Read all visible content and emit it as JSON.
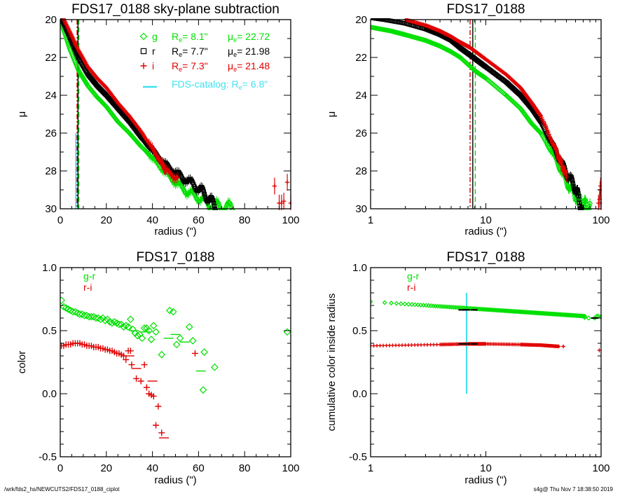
{
  "footer": {
    "left": "/wrk/fds2_hs/NEWCUTS2/FDS17_0188_ciplot",
    "right": "s4g@  Thu Nov  7 18:38:50 2019"
  },
  "colors": {
    "g": "#00e000",
    "r": "#000000",
    "i": "#e00000",
    "catalog": "#40e0f0"
  },
  "chart_data": [
    {
      "id": "profile-linear",
      "type": "scatter",
      "title": "FDS17_0188 sky-plane subtraction",
      "xlabel": "radius (\")",
      "ylabel": "μ",
      "xscale": "linear",
      "xlim": [
        0,
        100
      ],
      "ylim": [
        30,
        20
      ],
      "xticks": [
        "0",
        "20",
        "40",
        "60",
        "80",
        "100"
      ],
      "xtick_values": [
        0,
        20,
        40,
        60,
        80,
        100
      ],
      "yticks": [
        "20",
        "22",
        "24",
        "26",
        "28",
        "30"
      ],
      "ytick_values": [
        20,
        22,
        24,
        26,
        28,
        30
      ],
      "legend": [
        {
          "band": "g",
          "symbol": "◇",
          "re_label": "R",
          "re_sub": "e",
          "re_value": "=   8.1\"",
          "mu_label": "μ",
          "mu_sub": "e",
          "mu_value": "= 22.72"
        },
        {
          "band": "r",
          "symbol": "□",
          "re_label": "R",
          "re_sub": "e",
          "re_value": "=   7.7\"",
          "mu_label": "μ",
          "mu_sub": "e",
          "mu_value": "= 21.98"
        },
        {
          "band": "i",
          "symbol": "+",
          "re_label": "R",
          "re_sub": "e",
          "re_value": "=   7.3\"",
          "mu_label": "μ",
          "mu_sub": "e",
          "mu_value": "= 21.48"
        }
      ],
      "catalog_legend": {
        "text": "FDS-catalog: R",
        "sub": "e",
        "value": "=   6.8\""
      },
      "vlines": [
        {
          "band": "catalog",
          "x": 6.8,
          "style": "solid",
          "ymin": 26,
          "ymax": 30
        },
        {
          "band": "i",
          "x": 7.3,
          "style": "dashdot"
        },
        {
          "band": "r",
          "x": 7.7,
          "style": "solid"
        },
        {
          "band": "g",
          "x": 8.1,
          "style": "dashed"
        }
      ],
      "series": [
        {
          "name": "g",
          "marker": "diamond",
          "x": [
            0,
            4,
            8,
            12,
            16,
            20,
            25,
            30,
            35,
            40,
            45,
            50,
            55,
            60,
            65,
            70,
            75
          ],
          "y": [
            20.0,
            21.5,
            22.7,
            23.5,
            24.1,
            24.6,
            25.4,
            26.0,
            26.7,
            27.3,
            28.0,
            28.6,
            29.1,
            29.4,
            29.8,
            29.9,
            30.0
          ]
        },
        {
          "name": "r",
          "marker": "square",
          "x": [
            0,
            4,
            7.7,
            12,
            16,
            20,
            25,
            30,
            35,
            40,
            45,
            50,
            55,
            60,
            64,
            68
          ],
          "y": [
            19.8,
            20.9,
            21.98,
            22.9,
            23.5,
            24.0,
            24.7,
            25.4,
            26.2,
            26.9,
            27.6,
            28.1,
            28.5,
            28.9,
            29.4,
            30.0
          ]
        },
        {
          "name": "i",
          "marker": "plus",
          "x": [
            0,
            4,
            7.3,
            12,
            16,
            20,
            25,
            30,
            35,
            40,
            44,
            46,
            51
          ],
          "y": [
            19.6,
            20.6,
            21.48,
            22.5,
            23.1,
            23.6,
            24.4,
            25.1,
            25.9,
            26.8,
            27.6,
            28.0,
            28.4
          ]
        },
        {
          "name": "i-outer",
          "band": "i",
          "marker": "plus-err",
          "x": [
            93,
            95,
            96,
            97,
            98.5,
            100
          ],
          "y": [
            28.8,
            29.7,
            29.7,
            29.6,
            28.6,
            29.7
          ]
        }
      ]
    },
    {
      "id": "profile-log",
      "type": "scatter",
      "title": "FDS17_0188",
      "xlabel": "radius (\")",
      "ylabel": "μ",
      "xscale": "log",
      "xlim": [
        1,
        100
      ],
      "ylim": [
        30,
        20
      ],
      "xticks": [
        "1",
        "10",
        "100"
      ],
      "xtick_values": [
        1,
        10,
        100
      ],
      "yticks": [
        "20",
        "22",
        "24",
        "26",
        "28",
        "30"
      ],
      "ytick_values": [
        20,
        22,
        24,
        26,
        28,
        30
      ],
      "vlines": [
        {
          "band": "i",
          "x": 7.3,
          "style": "dashdot"
        },
        {
          "band": "r",
          "x": 7.7,
          "style": "solid"
        },
        {
          "band": "g",
          "x": 8.1,
          "style": "dashed"
        }
      ],
      "series": [
        {
          "name": "g",
          "marker": "diamond",
          "x": [
            1,
            1.5,
            2,
            3,
            4,
            5,
            6,
            8.1,
            10,
            15,
            20,
            25,
            30,
            40,
            50,
            60,
            70,
            80
          ],
          "y": [
            20.4,
            20.6,
            20.8,
            21.1,
            21.4,
            21.7,
            22.0,
            22.72,
            23.1,
            24.0,
            24.7,
            25.5,
            26.0,
            27.3,
            28.6,
            29.3,
            29.8,
            30.0
          ]
        },
        {
          "name": "r",
          "marker": "square",
          "x": [
            1,
            1.3,
            2,
            3,
            4,
            5,
            6,
            7.7,
            10,
            15,
            20,
            25,
            30,
            40,
            50,
            60,
            68
          ],
          "y": [
            19.9,
            20.0,
            20.2,
            20.5,
            20.8,
            21.1,
            21.5,
            21.98,
            22.5,
            23.3,
            24.0,
            24.7,
            25.4,
            26.9,
            28.1,
            28.9,
            30.0
          ]
        },
        {
          "name": "i",
          "marker": "plus",
          "x": [
            2,
            3,
            4,
            5,
            6,
            7.3,
            10,
            15,
            20,
            25,
            30,
            40,
            45,
            50
          ],
          "y": [
            20.0,
            20.3,
            20.6,
            20.9,
            21.2,
            21.48,
            22.1,
            22.9,
            23.6,
            24.4,
            25.1,
            26.8,
            27.6,
            28.3
          ]
        },
        {
          "name": "i-outer",
          "band": "i",
          "marker": "plus-err",
          "x": [
            95,
            97,
            98,
            99,
            100
          ],
          "y": [
            29.7,
            29.5,
            29.0,
            28.8,
            29.7
          ]
        }
      ]
    },
    {
      "id": "color-profile",
      "type": "scatter",
      "title": "FDS17_0188",
      "xlabel": "radius (\")",
      "ylabel": "color",
      "xscale": "linear",
      "xlim": [
        0,
        100
      ],
      "ylim": [
        -0.5,
        1.0
      ],
      "xticks": [
        "0",
        "20",
        "40",
        "60",
        "80",
        "100"
      ],
      "xtick_values": [
        0,
        20,
        40,
        60,
        80,
        100
      ],
      "yticks": [
        "1.0",
        "0.5",
        "0.0",
        "-0.5"
      ],
      "ytick_values": [
        1.0,
        0.5,
        0.0,
        -0.5
      ],
      "legend": [
        {
          "band": "g",
          "label": "g-r"
        },
        {
          "band": "i",
          "label": "r-i"
        }
      ],
      "series": [
        {
          "name": "g-r",
          "band": "g",
          "marker": "diamond",
          "x": [
            0.5,
            1.5,
            2.5,
            3.5,
            4.5,
            5.5,
            6.5,
            7.5,
            8.5,
            9.5,
            10.5,
            11.5,
            12.5,
            13.5,
            14.5,
            15.5,
            16.5,
            17.5,
            18.5,
            19.5,
            20.5,
            21.5,
            22.5,
            23.5,
            24.5,
            25.5,
            26.5,
            27.5,
            28.5,
            29.5,
            30.5,
            31.5,
            32.5,
            33.5,
            34.5,
            35.5,
            36.5,
            37.5,
            38.5,
            39.5,
            40.5,
            41.5,
            44,
            47.5,
            49,
            50.5,
            52,
            56,
            57.5,
            62,
            62.5,
            67
          ],
          "y": [
            0.74,
            0.69,
            0.68,
            0.67,
            0.66,
            0.65,
            0.65,
            0.64,
            0.63,
            0.63,
            0.62,
            0.62,
            0.61,
            0.61,
            0.61,
            0.6,
            0.6,
            0.59,
            0.6,
            0.58,
            0.59,
            0.57,
            0.56,
            0.57,
            0.56,
            0.55,
            0.55,
            0.53,
            0.54,
            0.53,
            0.59,
            0.51,
            0.48,
            0.46,
            0.47,
            0.44,
            0.52,
            0.52,
            0.5,
            0.43,
            0.54,
            0.49,
            0.31,
            0.66,
            0.65,
            0.39,
            0.44,
            0.53,
            0.42,
            0.03,
            0.33,
            0.21
          ]
        },
        {
          "name": "g-r-outer",
          "band": "g",
          "marker": "diamond",
          "x": [
            98.5
          ],
          "y": [
            0.49
          ]
        },
        {
          "name": "g-r-bins",
          "band": "g",
          "marker": "hbar",
          "x": [
            32,
            37,
            47,
            50,
            54,
            61
          ],
          "y": [
            0.5,
            0.49,
            0.44,
            0.47,
            0.41,
            0.18
          ]
        },
        {
          "name": "r-i",
          "band": "i",
          "marker": "plus",
          "x": [
            0.5,
            1.5,
            2.5,
            3.5,
            4.5,
            5.5,
            6.5,
            7.5,
            8.5,
            9.5,
            10.5,
            11.5,
            12.5,
            13.5,
            14.5,
            15.5,
            16.5,
            17.5,
            18.5,
            19.5,
            20.5,
            21.5,
            22.5,
            23.5,
            24.5,
            25.5,
            26.5,
            27.5,
            28.5,
            29.5,
            30.5,
            31,
            33,
            35,
            36.5,
            37.5,
            38.5,
            39.5,
            40.5,
            41.5,
            42.5,
            44,
            58.5
          ],
          "y": [
            0.38,
            0.38,
            0.39,
            0.39,
            0.39,
            0.4,
            0.4,
            0.4,
            0.4,
            0.39,
            0.39,
            0.38,
            0.38,
            0.38,
            0.37,
            0.37,
            0.37,
            0.36,
            0.36,
            0.35,
            0.35,
            0.34,
            0.34,
            0.33,
            0.32,
            0.32,
            0.31,
            0.3,
            0.27,
            0.34,
            0.34,
            0.23,
            0.12,
            0.1,
            0.23,
            0.05,
            0.0,
            -0.01,
            -0.02,
            -0.25,
            -0.1,
            -0.31,
            0.32
          ]
        },
        {
          "name": "r-i-bins",
          "band": "i",
          "marker": "hbar",
          "x": [
            30,
            33,
            40,
            45
          ],
          "y": [
            0.3,
            0.2,
            0.1,
            -0.35
          ]
        }
      ]
    },
    {
      "id": "cumulative-color",
      "type": "scatter",
      "title": "FDS17_0188",
      "xlabel": "radius (\")",
      "ylabel": "cumulative color inside radius",
      "xscale": "log",
      "xlim": [
        1,
        100
      ],
      "ylim": [
        -0.5,
        1.0
      ],
      "xticks": [
        "1",
        "10",
        "100"
      ],
      "xtick_values": [
        1,
        10,
        100
      ],
      "yticks": [
        "1.0",
        "0.5",
        "0.0",
        "-0.5"
      ],
      "ytick_values": [
        1.0,
        0.5,
        0.0,
        -0.5
      ],
      "legend": [
        {
          "band": "g",
          "label": "g-r"
        },
        {
          "band": "i",
          "label": "r-i"
        }
      ],
      "vlines": [
        {
          "band": "catalog",
          "x": 6.8,
          "style": "solid",
          "ymin": 0.0,
          "ymax": 0.8
        }
      ],
      "series": [
        {
          "name": "g-r",
          "band": "g",
          "marker": "diamond",
          "curve": {
            "x0": 1,
            "x1": 72,
            "y0": 0.73,
            "y1": 0.615,
            "n": 140
          },
          "x": [
            72,
            78,
            88,
            92,
            95,
            100
          ],
          "y": [
            0.605,
            0.6,
            0.6,
            0.615,
            0.615,
            0.61
          ]
        },
        {
          "name": "r-i",
          "band": "i",
          "marker": "plus",
          "curve_points": {
            "x": [
              1,
              2,
              4,
              7,
              10,
              20,
              30,
              43
            ],
            "y": [
              0.38,
              0.385,
              0.39,
              0.395,
              0.395,
              0.39,
              0.385,
              0.375
            ]
          },
          "x": [
            47,
            96.5
          ],
          "y": [
            0.375,
            0.345
          ]
        },
        {
          "name": "re-markers",
          "band": "r",
          "marker": "hbar-small",
          "x": [
            6.2,
            6.8,
            7.9,
            6.2,
            6.8,
            7.9,
            88
          ],
          "y": [
            0.665,
            0.665,
            0.665,
            0.395,
            0.395,
            0.395,
            0.6
          ]
        }
      ]
    }
  ]
}
